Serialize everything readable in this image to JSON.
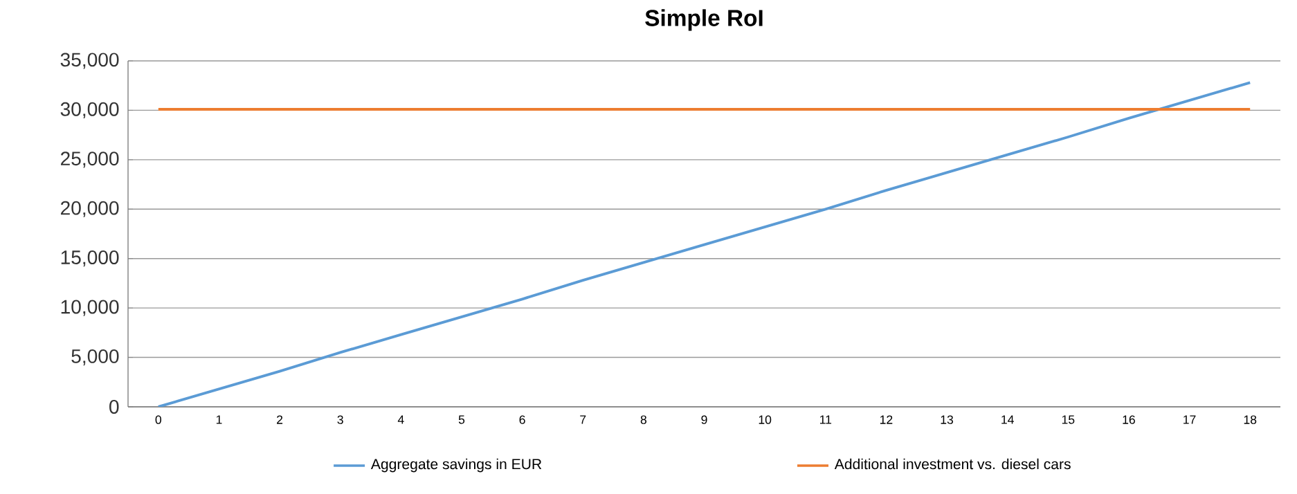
{
  "chart_data": {
    "type": "line",
    "title": "Simple RoI",
    "categories": [
      "0",
      "1",
      "2",
      "3",
      "4",
      "5",
      "6",
      "7",
      "8",
      "9",
      "10",
      "11",
      "12",
      "13",
      "14",
      "15",
      "16",
      "17",
      "18"
    ],
    "series": [
      {
        "name": "Aggregate savings in EUR",
        "color": "#5b9bd5",
        "values": [
          0,
          1800,
          3600,
          5500,
          7300,
          9100,
          10900,
          12800,
          14600,
          16400,
          18200,
          20000,
          21900,
          23700,
          25500,
          27300,
          29200,
          31000,
          32800
        ]
      },
      {
        "name": "Additional investment vs. diesel cars",
        "color": "#ed7d31",
        "values": [
          30100,
          30100,
          30100,
          30100,
          30100,
          30100,
          30100,
          30100,
          30100,
          30100,
          30100,
          30100,
          30100,
          30100,
          30100,
          30100,
          30100,
          30100,
          30100
        ]
      }
    ],
    "ylim": [
      0,
      35000
    ],
    "yticks": [
      {
        "value": 0,
        "label": "0"
      },
      {
        "value": 5000,
        "label": "5,000"
      },
      {
        "value": 10000,
        "label": "10,000"
      },
      {
        "value": 15000,
        "label": "15,000"
      },
      {
        "value": 20000,
        "label": "20,000"
      },
      {
        "value": 25000,
        "label": "25,000"
      },
      {
        "value": 30000,
        "label": "30,000"
      },
      {
        "value": 35000,
        "label": "35,000"
      }
    ],
    "grid": "y",
    "legend": "bottom",
    "marker": "none",
    "line_style": "solid"
  }
}
